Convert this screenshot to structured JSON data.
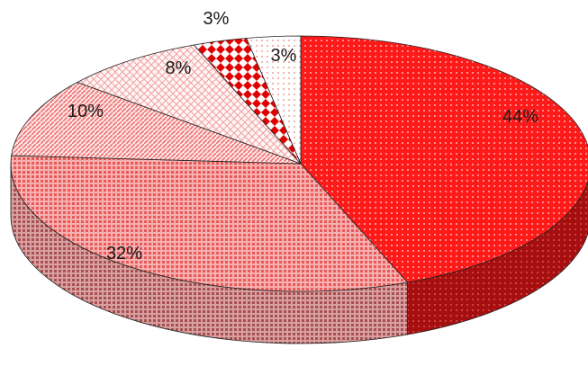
{
  "chart_data": {
    "type": "pie",
    "style": "3d",
    "title": "",
    "slices": [
      {
        "label": "44%",
        "value": 44,
        "color": "#ff1a1a",
        "pattern": "dots"
      },
      {
        "label": "32%",
        "value": 32,
        "color": "#f07070",
        "pattern": "grid"
      },
      {
        "label": "10%",
        "value": 10,
        "color": "#f6a0a0",
        "pattern": "diag"
      },
      {
        "label": "8%",
        "value": 8,
        "color": "#fbd0d0",
        "pattern": "cross"
      },
      {
        "label": "3%",
        "value": 3,
        "color": "#e60000",
        "pattern": "diamond"
      },
      {
        "label": "3%",
        "value": 3,
        "color": "#fff0f0",
        "pattern": "sparse"
      }
    ]
  }
}
